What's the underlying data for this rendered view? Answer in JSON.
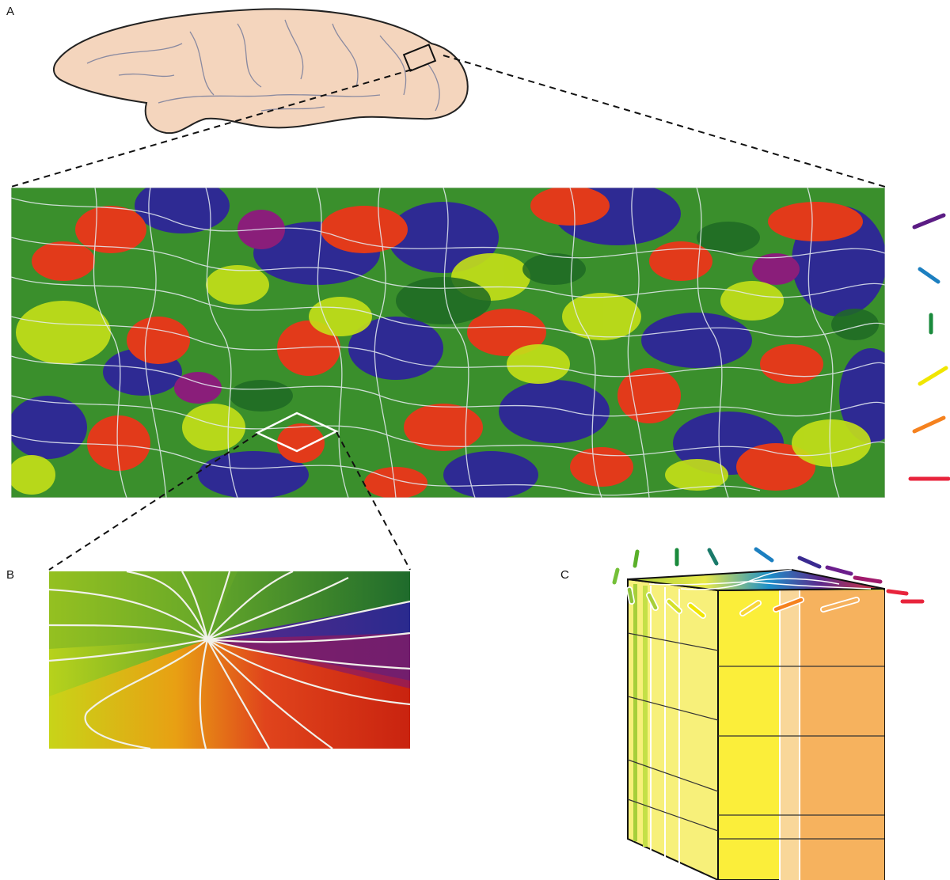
{
  "panels": {
    "a": {
      "label": "A"
    },
    "b": {
      "label": "B"
    },
    "c": {
      "label": "C"
    }
  },
  "legend": {
    "orientations": [
      {
        "name": "purple-bar",
        "color": "#5b1c84"
      },
      {
        "name": "blue-bar",
        "color": "#1c7fc0"
      },
      {
        "name": "green-bar",
        "color": "#1a8a3c"
      },
      {
        "name": "yellow-bar",
        "color": "#f0e600"
      },
      {
        "name": "orange-bar",
        "color": "#f5821f"
      },
      {
        "name": "red-bar",
        "color": "#e8243c"
      }
    ]
  },
  "colors": {
    "brain_fill": "#f4d5bd",
    "map_green": "#2f8a2b",
    "map_blue": "#2e2a93",
    "map_red": "#e23a1a",
    "map_yellow": "#c5e018",
    "block_yellow": "#f7f07a",
    "block_orange": "#f6b25e"
  }
}
